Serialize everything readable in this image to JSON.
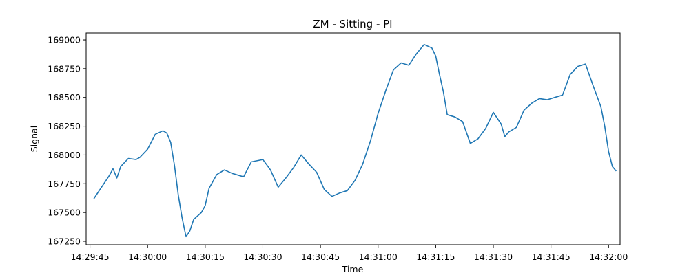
{
  "chart_data": {
    "type": "line",
    "title": "ZM - Sitting - PI",
    "xlabel": "Time",
    "ylabel": "Signal",
    "xlim": [
      "14:29:44",
      "14:32:03"
    ],
    "ylim": [
      167220,
      169060
    ],
    "x_ticks": [
      "14:29:45",
      "14:30:00",
      "14:30:15",
      "14:30:30",
      "14:30:45",
      "14:31:00",
      "14:31:15",
      "14:31:30",
      "14:31:45",
      "14:32:00"
    ],
    "y_ticks": [
      167250,
      167500,
      167750,
      168000,
      168250,
      168500,
      168750,
      169000
    ],
    "grid": false,
    "series": [
      {
        "color": "#1f77b4",
        "x": [
          "14:29:46",
          "14:29:48",
          "14:29:50",
          "14:29:51",
          "14:29:52",
          "14:29:53",
          "14:29:55",
          "14:29:57",
          "14:29:58",
          "14:30:00",
          "14:30:02",
          "14:30:04",
          "14:30:05",
          "14:30:06",
          "14:30:07",
          "14:30:08",
          "14:30:09",
          "14:30:10",
          "14:30:11",
          "14:30:12",
          "14:30:14",
          "14:30:15",
          "14:30:16",
          "14:30:18",
          "14:30:20",
          "14:30:22",
          "14:30:25",
          "14:30:27",
          "14:30:30",
          "14:30:32",
          "14:30:34",
          "14:30:36",
          "14:30:38",
          "14:30:40",
          "14:30:42",
          "14:30:44",
          "14:30:46",
          "14:30:48",
          "14:30:50",
          "14:30:52",
          "14:30:54",
          "14:30:56",
          "14:30:58",
          "14:31:00",
          "14:31:02",
          "14:31:04",
          "14:31:06",
          "14:31:08",
          "14:31:10",
          "14:31:12",
          "14:31:14",
          "14:31:15",
          "14:31:16",
          "14:31:17",
          "14:31:18",
          "14:31:20",
          "14:31:22",
          "14:31:24",
          "14:31:26",
          "14:31:28",
          "14:31:30",
          "14:31:32",
          "14:31:33",
          "14:31:34",
          "14:31:36",
          "14:31:38",
          "14:31:40",
          "14:31:42",
          "14:31:44",
          "14:31:46",
          "14:31:48",
          "14:31:50",
          "14:31:52",
          "14:31:54",
          "14:31:56",
          "14:31:58",
          "14:31:59",
          "14:32:00",
          "14:32:01",
          "14:32:02"
        ],
        "y": [
          167620,
          167720,
          167820,
          167880,
          167800,
          167900,
          167970,
          167960,
          167980,
          168050,
          168180,
          168210,
          168190,
          168110,
          167910,
          167650,
          167450,
          167290,
          167340,
          167440,
          167500,
          167560,
          167710,
          167830,
          167870,
          167840,
          167810,
          167940,
          167960,
          167870,
          167720,
          167800,
          167890,
          168000,
          167920,
          167850,
          167700,
          167640,
          167670,
          167690,
          167780,
          167920,
          168120,
          168360,
          168560,
          168740,
          168800,
          168780,
          168880,
          168960,
          168930,
          168860,
          168700,
          168550,
          168350,
          168330,
          168290,
          168100,
          168140,
          168230,
          168370,
          168270,
          168160,
          168200,
          168240,
          168390,
          168450,
          168490,
          168480,
          168500,
          168520,
          168700,
          168770,
          168790,
          168600,
          168420,
          168250,
          168030,
          167900,
          167860
        ]
      }
    ]
  }
}
